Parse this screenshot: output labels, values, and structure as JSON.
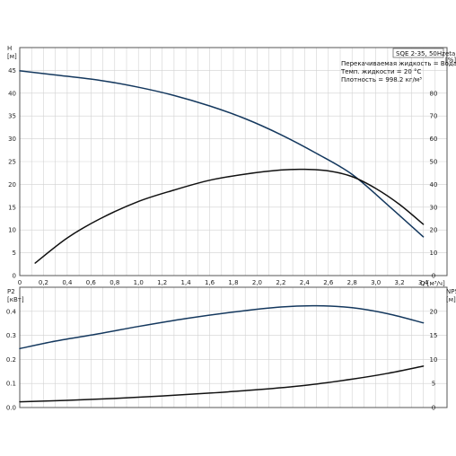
{
  "chart_data": [
    {
      "type": "line",
      "title_box": "SQE 2-35, 50Hz",
      "annotations": [
        "Перекачиваемая жидкость = Вода",
        "Темп. жидкости = 20 °C",
        "Плотность = 998.2 кг/м³"
      ],
      "x_label": "Q [м³/ч]",
      "x_range": [
        0,
        3.6
      ],
      "x_ticks": [
        "0",
        "0,2",
        "0,4",
        "0,6",
        "0,8",
        "1,0",
        "1,2",
        "1,4",
        "1,6",
        "1,8",
        "2,0",
        "2,2",
        "2,4",
        "2,6",
        "2,8",
        "3,0",
        "3,2",
        "3,4"
      ],
      "y_left_label_1": "H",
      "y_left_label_2": "[м]",
      "y_left_range": [
        0,
        50
      ],
      "y_left_ticks": [
        "0",
        "5",
        "10",
        "15",
        "20",
        "25",
        "30",
        "35",
        "40",
        "45"
      ],
      "y_right_label_1": "eta",
      "y_right_label_2": "[%]",
      "y_right_range": [
        0,
        100
      ],
      "y_right_ticks": [
        "0",
        "10",
        "20",
        "30",
        "40",
        "50",
        "60",
        "70",
        "80"
      ],
      "grid": true,
      "series": [
        {
          "axis": "left",
          "color": "#14385e",
          "x": [
            0.0,
            0.3,
            0.68,
            1.0,
            1.3,
            1.6,
            1.9,
            2.2,
            2.5,
            2.8,
            3.1,
            3.4
          ],
          "y": [
            44.9,
            44.0,
            42.8,
            41.3,
            39.5,
            37.2,
            34.4,
            30.9,
            26.8,
            22.2,
            15.5,
            8.5
          ]
        },
        {
          "axis": "right",
          "color": "#111111",
          "x": [
            0.13,
            0.4,
            0.68,
            1.0,
            1.3,
            1.6,
            1.9,
            2.2,
            2.4,
            2.6,
            2.8,
            3.0,
            3.2,
            3.4
          ],
          "y": [
            5.5,
            16.5,
            25.0,
            32.5,
            37.5,
            41.8,
            44.5,
            46.3,
            46.6,
            45.9,
            43.4,
            38.2,
            31.2,
            22.5
          ]
        }
      ]
    },
    {
      "type": "line",
      "x_range": [
        0,
        3.6
      ],
      "y_left_label_1": "P2",
      "y_left_label_2": "[кВт]",
      "y_left_range": [
        0,
        0.5
      ],
      "y_left_ticks": [
        "0.0",
        "0.1",
        "0.2",
        "0.3",
        "0.4"
      ],
      "y_right_label_1": "NPSH",
      "y_right_label_2": "[м]",
      "y_right_range": [
        0,
        25
      ],
      "y_right_ticks": [
        "0",
        "5",
        "10",
        "15",
        "20"
      ],
      "grid": true,
      "series": [
        {
          "axis": "left",
          "color": "#14385e",
          "x": [
            0.0,
            0.3,
            0.68,
            1.0,
            1.4,
            1.8,
            2.2,
            2.5,
            2.8,
            3.1,
            3.4
          ],
          "y": [
            0.245,
            0.276,
            0.308,
            0.337,
            0.37,
            0.397,
            0.418,
            0.423,
            0.415,
            0.39,
            0.352
          ]
        },
        {
          "axis": "right",
          "color": "#111111",
          "x": [
            0.0,
            0.4,
            0.8,
            1.2,
            1.6,
            2.0,
            2.4,
            2.8,
            3.1,
            3.4
          ],
          "y": [
            1.2,
            1.5,
            1.9,
            2.4,
            3.0,
            3.7,
            4.6,
            5.9,
            7.1,
            8.6
          ]
        }
      ]
    }
  ]
}
